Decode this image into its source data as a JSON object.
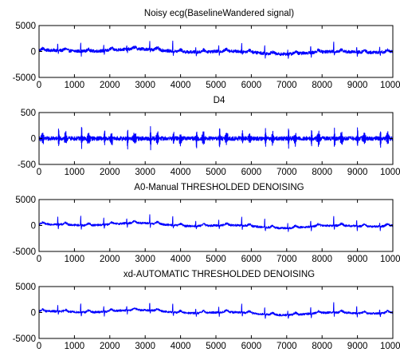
{
  "chart_data": [
    {
      "type": "line",
      "title": "Noisy ecg(BaselineWandered signal)",
      "xlim": [
        0,
        10000
      ],
      "ylim": [
        -5000,
        5000
      ],
      "xticks": [
        0,
        1000,
        2000,
        3000,
        4000,
        5000,
        6000,
        7000,
        8000,
        9000,
        10000
      ],
      "yticks": [
        -5000,
        0,
        5000
      ],
      "xtick_labels": [
        "0",
        "1000",
        "2000",
        "3000",
        "4000",
        "5000",
        "6000",
        "7000",
        "8000",
        "9000",
        "10000"
      ],
      "ytick_labels": [
        "-5000",
        "0",
        "5000"
      ],
      "series": [
        {
          "color": "#0000ff",
          "style": "ecg",
          "period": 650,
          "first_beat": 520,
          "amplitude": 2000,
          "noise": 300
        }
      ]
    },
    {
      "type": "line",
      "title": "D4",
      "xlim": [
        0,
        10000
      ],
      "ylim": [
        -500,
        500
      ],
      "xticks": [
        0,
        1000,
        2000,
        3000,
        4000,
        5000,
        6000,
        7000,
        8000,
        9000,
        10000
      ],
      "yticks": [
        -500,
        0,
        500
      ],
      "xtick_labels": [
        "0",
        "1000",
        "2000",
        "3000",
        "4000",
        "5000",
        "6000",
        "7000",
        "8000",
        "9000",
        "10000"
      ],
      "ytick_labels": [
        "-500",
        "0",
        "500"
      ],
      "series": [
        {
          "color": "#0000ff",
          "style": "detail",
          "period": 650,
          "first_beat": 520,
          "amplitude": 450,
          "noise": 40
        }
      ]
    },
    {
      "type": "line",
      "title": "A0-Manual THRESHOLDED DENOISING",
      "xlim": [
        0,
        10000
      ],
      "ylim": [
        -5000,
        5000
      ],
      "xticks": [
        0,
        1000,
        2000,
        3000,
        4000,
        5000,
        6000,
        7000,
        8000,
        9000,
        10000
      ],
      "yticks": [
        -5000,
        0,
        5000
      ],
      "xtick_labels": [
        "0",
        "1000",
        "2000",
        "3000",
        "4000",
        "5000",
        "6000",
        "7000",
        "8000",
        "9000",
        "10000"
      ],
      "ytick_labels": [
        "-5000",
        "0",
        "5000"
      ],
      "series": [
        {
          "color": "#0000ff",
          "style": "ecg",
          "period": 650,
          "first_beat": 520,
          "amplitude": 2000,
          "noise": 200
        }
      ]
    },
    {
      "type": "line",
      "title": "xd-AUTOMATIC THRESHOLDED DENOISING",
      "xlim": [
        0,
        10000
      ],
      "ylim": [
        -5000,
        5000
      ],
      "xticks": [
        0,
        1000,
        2000,
        3000,
        4000,
        5000,
        6000,
        7000,
        8000,
        9000,
        10000
      ],
      "yticks": [
        -5000,
        0,
        5000
      ],
      "xtick_labels": [
        "0",
        "1000",
        "2000",
        "3000",
        "4000",
        "5000",
        "6000",
        "7000",
        "8000",
        "9000",
        "10000"
      ],
      "ytick_labels": [
        "-5000",
        "0",
        "5000"
      ],
      "series": [
        {
          "color": "#0000ff",
          "style": "ecg",
          "period": 650,
          "first_beat": 520,
          "amplitude": 2000,
          "noise": 200
        }
      ]
    }
  ]
}
